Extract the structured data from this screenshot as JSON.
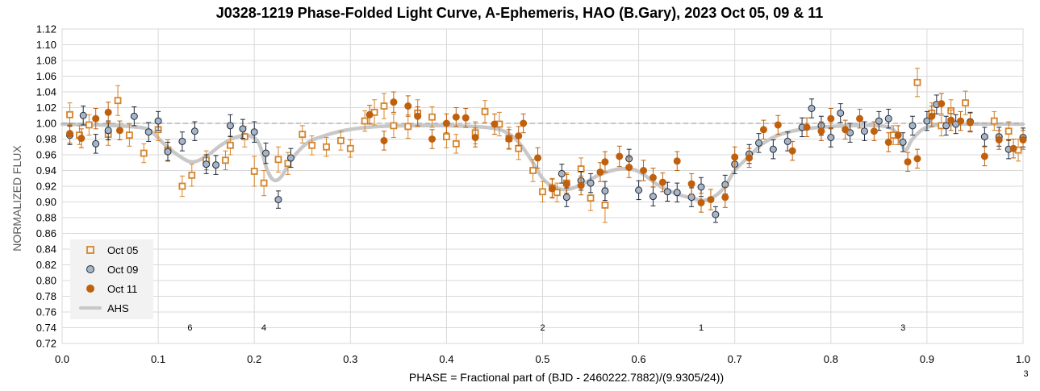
{
  "chart_data": {
    "type": "scatter",
    "title": "J0328-1219 Phase-Folded Light Curve, A-Ephemeris, HAO (B.Gary), 2023 Oct 05, 09 & 11",
    "xlabel": "PHASE = Fractional part of (BJD - 2460222.7882)/(9.9305/24))",
    "ylabel": "NORMALIZED FLUX",
    "xlim": [
      0.0,
      1.0
    ],
    "ylim": [
      0.72,
      1.12
    ],
    "xticks": [
      0.0,
      0.1,
      0.2,
      0.3,
      0.4,
      0.5,
      0.6,
      0.7,
      0.8,
      0.9,
      1.0
    ],
    "xtick_labels": [
      "0.0",
      "0.1",
      "0.2",
      "0.3",
      "0.4",
      "0.5",
      "0.6",
      "0.7",
      "0.8",
      "0.9",
      "1.0"
    ],
    "yticks": [
      0.72,
      0.74,
      0.76,
      0.78,
      0.8,
      0.82,
      0.84,
      0.86,
      0.88,
      0.9,
      0.92,
      0.94,
      0.96,
      0.98,
      1.0,
      1.02,
      1.04,
      1.06,
      1.08,
      1.1,
      1.12
    ],
    "ytick_labels": [
      "0.72",
      "0.74",
      "0.76",
      "0.78",
      "0.80",
      "0.82",
      "0.84",
      "0.86",
      "0.88",
      "0.90",
      "0.92",
      "0.94",
      "0.96",
      "0.98",
      "1.00",
      "1.02",
      "1.04",
      "1.06",
      "1.08",
      "1.10",
      "1.12"
    ],
    "grid": true,
    "reference_line": 1.0,
    "legend_position": "bottom-left",
    "colors": {
      "oct05": "#d4842b",
      "oct09": "#a7b5c6",
      "oct11": "#c0600c",
      "ahs": "#c8c8c8",
      "refline": "#a6a6a6",
      "grid": "#d9d9d9"
    },
    "series": [
      {
        "name": "Oct 05",
        "marker": "open-square",
        "points": [
          [
            0.008,
            1.011,
            0.015
          ],
          [
            0.018,
            0.985,
            0.012
          ],
          [
            0.028,
            0.998,
            0.013
          ],
          [
            0.048,
            0.986,
            0.014
          ],
          [
            0.058,
            1.029,
            0.019
          ],
          [
            0.07,
            0.985,
            0.014
          ],
          [
            0.085,
            0.962,
            0.012
          ],
          [
            0.1,
            0.992,
            0.014
          ],
          [
            0.11,
            0.966,
            0.013
          ],
          [
            0.125,
            0.92,
            0.013
          ],
          [
            0.135,
            0.934,
            0.014
          ],
          [
            0.15,
            0.953,
            0.012
          ],
          [
            0.17,
            0.953,
            0.012
          ],
          [
            0.175,
            0.972,
            0.012
          ],
          [
            0.19,
            0.983,
            0.013
          ],
          [
            0.2,
            0.939,
            0.019
          ],
          [
            0.21,
            0.924,
            0.016
          ],
          [
            0.225,
            0.954,
            0.016
          ],
          [
            0.235,
            0.949,
            0.014
          ],
          [
            0.25,
            0.986,
            0.011
          ],
          [
            0.26,
            0.972,
            0.012
          ],
          [
            0.275,
            0.97,
            0.012
          ],
          [
            0.29,
            0.978,
            0.012
          ],
          [
            0.3,
            0.968,
            0.011
          ],
          [
            0.315,
            1.003,
            0.013
          ],
          [
            0.325,
            1.014,
            0.016
          ],
          [
            0.335,
            1.022,
            0.016
          ],
          [
            0.345,
            0.997,
            0.015
          ],
          [
            0.36,
            0.996,
            0.015
          ],
          [
            0.37,
            1.013,
            0.017
          ],
          [
            0.385,
            1.008,
            0.013
          ],
          [
            0.4,
            0.983,
            0.014
          ],
          [
            0.41,
            0.974,
            0.012
          ],
          [
            0.43,
            0.988,
            0.014
          ],
          [
            0.44,
            1.015,
            0.014
          ],
          [
            0.455,
            0.999,
            0.015
          ],
          [
            0.465,
            0.981,
            0.014
          ],
          [
            0.475,
            0.968,
            0.014
          ],
          [
            0.49,
            0.94,
            0.014
          ],
          [
            0.5,
            0.913,
            0.013
          ],
          [
            0.51,
            0.918,
            0.012
          ],
          [
            0.515,
            0.912,
            0.012
          ],
          [
            0.525,
            0.924,
            0.013
          ],
          [
            0.54,
            0.942,
            0.014
          ],
          [
            0.55,
            0.905,
            0.016
          ],
          [
            0.565,
            0.896,
            0.022
          ],
          [
            0.865,
            0.985,
            0.012
          ],
          [
            0.89,
            1.052,
            0.018
          ],
          [
            0.905,
            1.013,
            0.013
          ],
          [
            0.915,
            0.997,
            0.013
          ],
          [
            0.925,
            1.016,
            0.014
          ],
          [
            0.94,
            1.026,
            0.015
          ],
          [
            0.97,
            1.003,
            0.012
          ],
          [
            0.985,
            0.99,
            0.012
          ],
          [
            0.995,
            0.966,
            0.014
          ]
        ]
      },
      {
        "name": "Oct 09",
        "marker": "filled-circle",
        "points": [
          [
            0.008,
            0.985,
            0.012
          ],
          [
            0.022,
            1.01,
            0.012
          ],
          [
            0.035,
            0.974,
            0.012
          ],
          [
            0.048,
            0.991,
            0.012
          ],
          [
            0.075,
            1.009,
            0.012
          ],
          [
            0.09,
            0.989,
            0.012
          ],
          [
            0.1,
            1.003,
            0.012
          ],
          [
            0.11,
            0.964,
            0.012
          ],
          [
            0.125,
            0.977,
            0.012
          ],
          [
            0.138,
            0.99,
            0.012
          ],
          [
            0.15,
            0.948,
            0.012
          ],
          [
            0.16,
            0.947,
            0.012
          ],
          [
            0.175,
            0.997,
            0.014
          ],
          [
            0.188,
            0.993,
            0.012
          ],
          [
            0.2,
            0.989,
            0.013
          ],
          [
            0.212,
            0.962,
            0.013
          ],
          [
            0.225,
            0.903,
            0.011
          ],
          [
            0.238,
            0.956,
            0.012
          ],
          [
            0.52,
            0.936,
            0.012
          ],
          [
            0.525,
            0.906,
            0.012
          ],
          [
            0.54,
            0.927,
            0.012
          ],
          [
            0.55,
            0.924,
            0.012
          ],
          [
            0.565,
            0.914,
            0.012
          ],
          [
            0.59,
            0.955,
            0.012
          ],
          [
            0.6,
            0.915,
            0.012
          ],
          [
            0.615,
            0.907,
            0.012
          ],
          [
            0.63,
            0.913,
            0.012
          ],
          [
            0.64,
            0.912,
            0.012
          ],
          [
            0.655,
            0.906,
            0.012
          ],
          [
            0.665,
            0.919,
            0.012
          ],
          [
            0.68,
            0.884,
            0.01
          ],
          [
            0.69,
            0.922,
            0.012
          ],
          [
            0.7,
            0.948,
            0.012
          ],
          [
            0.715,
            0.961,
            0.012
          ],
          [
            0.725,
            0.975,
            0.012
          ],
          [
            0.74,
            0.967,
            0.012
          ],
          [
            0.755,
            0.977,
            0.012
          ],
          [
            0.77,
            0.995,
            0.012
          ],
          [
            0.78,
            1.019,
            0.012
          ],
          [
            0.79,
            0.997,
            0.012
          ],
          [
            0.8,
            0.982,
            0.012
          ],
          [
            0.81,
            1.013,
            0.012
          ],
          [
            0.82,
            0.988,
            0.012
          ],
          [
            0.835,
            0.99,
            0.012
          ],
          [
            0.85,
            1.003,
            0.012
          ],
          [
            0.86,
            1.006,
            0.012
          ],
          [
            0.875,
            0.976,
            0.012
          ],
          [
            0.885,
            0.997,
            0.012
          ],
          [
            0.9,
            1.003,
            0.012
          ],
          [
            0.91,
            1.024,
            0.012
          ],
          [
            0.92,
            0.997,
            0.012
          ],
          [
            0.93,
            0.999,
            0.012
          ],
          [
            0.945,
            1.002,
            0.012
          ],
          [
            0.96,
            0.983,
            0.012
          ],
          [
            0.975,
            0.983,
            0.012
          ],
          [
            0.985,
            0.967,
            0.012
          ],
          [
            1.0,
            0.982,
            0.012
          ]
        ]
      },
      {
        "name": "Oct 11",
        "marker": "filled-circle",
        "points": [
          [
            0.008,
            0.987,
            0.012
          ],
          [
            0.02,
            0.981,
            0.012
          ],
          [
            0.035,
            1.006,
            0.013
          ],
          [
            0.048,
            1.014,
            0.013
          ],
          [
            0.06,
            0.991,
            0.012
          ],
          [
            0.32,
            1.011,
            0.012
          ],
          [
            0.335,
            0.978,
            0.012
          ],
          [
            0.345,
            1.027,
            0.013
          ],
          [
            0.36,
            1.022,
            0.013
          ],
          [
            0.37,
            1.009,
            0.012
          ],
          [
            0.385,
            0.98,
            0.012
          ],
          [
            0.4,
            1.0,
            0.012
          ],
          [
            0.41,
            1.008,
            0.012
          ],
          [
            0.42,
            1.007,
            0.012
          ],
          [
            0.43,
            0.982,
            0.012
          ],
          [
            0.45,
            0.999,
            0.013
          ],
          [
            0.465,
            0.98,
            0.012
          ],
          [
            0.475,
            0.984,
            0.012
          ],
          [
            0.48,
            1.0,
            0.012
          ],
          [
            0.495,
            0.956,
            0.013
          ],
          [
            0.51,
            0.917,
            0.012
          ],
          [
            0.525,
            0.923,
            0.012
          ],
          [
            0.54,
            0.921,
            0.012
          ],
          [
            0.56,
            0.938,
            0.012
          ],
          [
            0.565,
            0.951,
            0.013
          ],
          [
            0.58,
            0.958,
            0.013
          ],
          [
            0.59,
            0.944,
            0.013
          ],
          [
            0.605,
            0.94,
            0.013
          ],
          [
            0.615,
            0.931,
            0.012
          ],
          [
            0.625,
            0.925,
            0.012
          ],
          [
            0.64,
            0.952,
            0.012
          ],
          [
            0.655,
            0.923,
            0.013
          ],
          [
            0.665,
            0.899,
            0.012
          ],
          [
            0.675,
            0.903,
            0.013
          ],
          [
            0.69,
            0.906,
            0.013
          ],
          [
            0.7,
            0.957,
            0.013
          ],
          [
            0.715,
            0.956,
            0.012
          ],
          [
            0.73,
            0.992,
            0.012
          ],
          [
            0.745,
            0.998,
            0.012
          ],
          [
            0.76,
            0.965,
            0.012
          ],
          [
            0.775,
            0.995,
            0.012
          ],
          [
            0.79,
            0.99,
            0.012
          ],
          [
            0.8,
            1.006,
            0.013
          ],
          [
            0.815,
            0.992,
            0.012
          ],
          [
            0.83,
            1.006,
            0.012
          ],
          [
            0.845,
            0.99,
            0.012
          ],
          [
            0.86,
            0.976,
            0.012
          ],
          [
            0.87,
            0.985,
            0.012
          ],
          [
            0.88,
            0.951,
            0.012
          ],
          [
            0.89,
            0.955,
            0.012
          ],
          [
            0.905,
            1.009,
            0.013
          ],
          [
            0.915,
            1.025,
            0.013
          ],
          [
            0.925,
            1.004,
            0.013
          ],
          [
            0.935,
            1.003,
            0.012
          ],
          [
            0.945,
            1.001,
            0.012
          ],
          [
            0.96,
            0.958,
            0.012
          ],
          [
            0.975,
            0.979,
            0.012
          ],
          [
            0.99,
            0.968,
            0.012
          ],
          [
            1.0,
            0.979,
            0.012
          ]
        ]
      },
      {
        "name": "AHS",
        "marker": "line",
        "points": [
          [
            0.0,
            0.999
          ],
          [
            0.04,
            0.998
          ],
          [
            0.07,
            0.996
          ],
          [
            0.09,
            0.992
          ],
          [
            0.105,
            0.975
          ],
          [
            0.12,
            0.96
          ],
          [
            0.135,
            0.951
          ],
          [
            0.15,
            0.958
          ],
          [
            0.165,
            0.972
          ],
          [
            0.18,
            0.982
          ],
          [
            0.195,
            0.984
          ],
          [
            0.205,
            0.974
          ],
          [
            0.213,
            0.942
          ],
          [
            0.22,
            0.928
          ],
          [
            0.228,
            0.932
          ],
          [
            0.24,
            0.956
          ],
          [
            0.255,
            0.975
          ],
          [
            0.27,
            0.983
          ],
          [
            0.29,
            0.99
          ],
          [
            0.31,
            0.994
          ],
          [
            0.33,
            0.996
          ],
          [
            0.36,
            0.997
          ],
          [
            0.4,
            0.997
          ],
          [
            0.44,
            0.995
          ],
          [
            0.46,
            0.99
          ],
          [
            0.475,
            0.976
          ],
          [
            0.49,
            0.95
          ],
          [
            0.5,
            0.93
          ],
          [
            0.51,
            0.92
          ],
          [
            0.52,
            0.916
          ],
          [
            0.53,
            0.917
          ],
          [
            0.545,
            0.925
          ],
          [
            0.56,
            0.935
          ],
          [
            0.58,
            0.942
          ],
          [
            0.595,
            0.941
          ],
          [
            0.605,
            0.935
          ],
          [
            0.615,
            0.926
          ],
          [
            0.625,
            0.918
          ],
          [
            0.64,
            0.91
          ],
          [
            0.655,
            0.905
          ],
          [
            0.668,
            0.902
          ],
          [
            0.68,
            0.908
          ],
          [
            0.69,
            0.92
          ],
          [
            0.7,
            0.94
          ],
          [
            0.715,
            0.958
          ],
          [
            0.73,
            0.975
          ],
          [
            0.75,
            0.987
          ],
          [
            0.78,
            0.994
          ],
          [
            0.82,
            0.997
          ],
          [
            0.85,
            0.997
          ],
          [
            0.865,
            0.992
          ],
          [
            0.872,
            0.978
          ],
          [
            0.878,
            0.966
          ],
          [
            0.885,
            0.98
          ],
          [
            0.9,
            0.995
          ],
          [
            0.93,
            0.999
          ],
          [
            1.0,
            0.999
          ]
        ]
      }
    ],
    "annotations": [
      {
        "text": "6",
        "x": 0.133
      },
      {
        "text": "4",
        "x": 0.21
      },
      {
        "text": "2",
        "x": 0.5
      },
      {
        "text": "1",
        "x": 0.665
      },
      {
        "text": "3",
        "x": 0.875
      },
      {
        "text": "3",
        "x": 1.003
      }
    ]
  }
}
